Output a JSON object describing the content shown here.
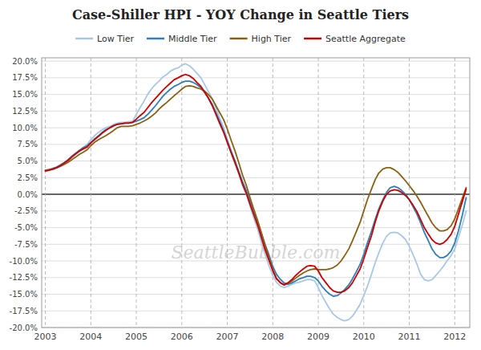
{
  "chart_data": {
    "type": "line",
    "title": "Case-Shiller HPI - YOY Change in Seattle Tiers",
    "annotations": [
      "SeattleBubble.com"
    ],
    "grid": true,
    "legend": "top",
    "xlim": [
      2002.92,
      2012.33
    ],
    "xticks": [
      2003,
      2004,
      2005,
      2006,
      2007,
      2008,
      2009,
      2010,
      2011,
      2012
    ],
    "ylim": [
      -0.2,
      0.205
    ],
    "yticks": [
      {
        "value": -0.2,
        "label": "-20.0%"
      },
      {
        "value": -0.175,
        "label": "-17.5%"
      },
      {
        "value": -0.15,
        "label": "-15.0%"
      },
      {
        "value": -0.125,
        "label": "-12.5%"
      },
      {
        "value": -0.1,
        "label": "-10.0%"
      },
      {
        "value": -0.075,
        "label": "-7.5%"
      },
      {
        "value": -0.05,
        "label": "-5.0%"
      },
      {
        "value": -0.025,
        "label": "-2.5%"
      },
      {
        "value": 0.0,
        "label": "0.0%"
      },
      {
        "value": 0.025,
        "label": "2.5%"
      },
      {
        "value": 0.05,
        "label": "5.0%"
      },
      {
        "value": 0.075,
        "label": "7.5%"
      },
      {
        "value": 0.1,
        "label": "10.0%"
      },
      {
        "value": 0.125,
        "label": "12.5%"
      },
      {
        "value": 0.15,
        "label": "15.0%"
      },
      {
        "value": 0.175,
        "label": "17.5%"
      },
      {
        "value": 0.2,
        "label": "20.0%"
      }
    ],
    "x": [
      2003.0,
      2003.08,
      2003.17,
      2003.25,
      2003.33,
      2003.42,
      2003.5,
      2003.58,
      2003.67,
      2003.75,
      2003.83,
      2003.92,
      2004.0,
      2004.08,
      2004.17,
      2004.25,
      2004.33,
      2004.42,
      2004.5,
      2004.58,
      2004.67,
      2004.75,
      2004.83,
      2004.92,
      2005.0,
      2005.08,
      2005.17,
      2005.25,
      2005.33,
      2005.42,
      2005.5,
      2005.58,
      2005.67,
      2005.75,
      2005.83,
      2005.92,
      2006.0,
      2006.08,
      2006.17,
      2006.25,
      2006.33,
      2006.42,
      2006.5,
      2006.58,
      2006.67,
      2006.75,
      2006.83,
      2006.92,
      2007.0,
      2007.08,
      2007.17,
      2007.25,
      2007.33,
      2007.42,
      2007.5,
      2007.58,
      2007.67,
      2007.75,
      2007.83,
      2007.92,
      2008.0,
      2008.08,
      2008.17,
      2008.25,
      2008.33,
      2008.42,
      2008.5,
      2008.58,
      2008.67,
      2008.75,
      2008.83,
      2008.92,
      2009.0,
      2009.08,
      2009.17,
      2009.25,
      2009.33,
      2009.42,
      2009.5,
      2009.58,
      2009.67,
      2009.75,
      2009.83,
      2009.92,
      2010.0,
      2010.08,
      2010.17,
      2010.25,
      2010.33,
      2010.42,
      2010.5,
      2010.58,
      2010.67,
      2010.75,
      2010.83,
      2010.92,
      2011.0,
      2011.08,
      2011.17,
      2011.25,
      2011.33,
      2011.42,
      2011.5,
      2011.58,
      2011.67,
      2011.75,
      2011.83,
      2011.92,
      2012.0,
      2012.08,
      2012.17,
      2012.25
    ],
    "series": [
      {
        "name": "Low Tier",
        "color": "#a8c8e8",
        "values": [
          0.035,
          0.036,
          0.038,
          0.04,
          0.043,
          0.046,
          0.05,
          0.055,
          0.06,
          0.065,
          0.07,
          0.075,
          0.082,
          0.088,
          0.093,
          0.097,
          0.1,
          0.102,
          0.105,
          0.107,
          0.108,
          0.108,
          0.109,
          0.11,
          0.12,
          0.13,
          0.14,
          0.15,
          0.158,
          0.165,
          0.17,
          0.176,
          0.18,
          0.185,
          0.188,
          0.19,
          0.194,
          0.196,
          0.193,
          0.188,
          0.182,
          0.175,
          0.165,
          0.155,
          0.143,
          0.13,
          0.115,
          0.1,
          0.083,
          0.067,
          0.05,
          0.033,
          0.015,
          0.0,
          -0.018,
          -0.035,
          -0.053,
          -0.072,
          -0.09,
          -0.108,
          -0.122,
          -0.132,
          -0.138,
          -0.14,
          -0.138,
          -0.135,
          -0.133,
          -0.132,
          -0.13,
          -0.128,
          -0.128,
          -0.13,
          -0.14,
          -0.152,
          -0.163,
          -0.172,
          -0.18,
          -0.185,
          -0.188,
          -0.19,
          -0.188,
          -0.183,
          -0.175,
          -0.165,
          -0.152,
          -0.138,
          -0.12,
          -0.103,
          -0.088,
          -0.073,
          -0.063,
          -0.058,
          -0.057,
          -0.058,
          -0.062,
          -0.068,
          -0.078,
          -0.09,
          -0.105,
          -0.12,
          -0.128,
          -0.13,
          -0.128,
          -0.122,
          -0.115,
          -0.108,
          -0.1,
          -0.092,
          -0.082,
          -0.065,
          -0.045,
          -0.025
        ]
      },
      {
        "name": "Middle Tier",
        "color": "#2e7eb8",
        "values": [
          0.036,
          0.037,
          0.039,
          0.041,
          0.044,
          0.048,
          0.052,
          0.057,
          0.062,
          0.066,
          0.07,
          0.073,
          0.078,
          0.083,
          0.088,
          0.093,
          0.097,
          0.1,
          0.103,
          0.105,
          0.106,
          0.107,
          0.107,
          0.108,
          0.11,
          0.112,
          0.115,
          0.12,
          0.126,
          0.133,
          0.14,
          0.147,
          0.153,
          0.158,
          0.162,
          0.165,
          0.168,
          0.17,
          0.17,
          0.168,
          0.165,
          0.16,
          0.153,
          0.145,
          0.135,
          0.123,
          0.11,
          0.095,
          0.08,
          0.065,
          0.05,
          0.035,
          0.02,
          0.005,
          -0.01,
          -0.025,
          -0.042,
          -0.058,
          -0.075,
          -0.092,
          -0.108,
          -0.12,
          -0.128,
          -0.133,
          -0.135,
          -0.133,
          -0.13,
          -0.127,
          -0.125,
          -0.123,
          -0.123,
          -0.125,
          -0.13,
          -0.138,
          -0.145,
          -0.15,
          -0.153,
          -0.152,
          -0.148,
          -0.143,
          -0.136,
          -0.127,
          -0.117,
          -0.105,
          -0.09,
          -0.073,
          -0.055,
          -0.038,
          -0.022,
          -0.008,
          0.003,
          0.01,
          0.012,
          0.01,
          0.006,
          0.0,
          -0.008,
          -0.018,
          -0.03,
          -0.043,
          -0.057,
          -0.07,
          -0.082,
          -0.09,
          -0.095,
          -0.095,
          -0.092,
          -0.085,
          -0.073,
          -0.055,
          -0.03,
          -0.005
        ]
      },
      {
        "name": "High Tier",
        "color": "#8B6010",
        "values": [
          0.036,
          0.037,
          0.038,
          0.04,
          0.042,
          0.045,
          0.048,
          0.052,
          0.056,
          0.06,
          0.063,
          0.067,
          0.073,
          0.078,
          0.082,
          0.085,
          0.088,
          0.092,
          0.096,
          0.1,
          0.102,
          0.102,
          0.102,
          0.103,
          0.105,
          0.107,
          0.11,
          0.113,
          0.117,
          0.122,
          0.128,
          0.133,
          0.138,
          0.143,
          0.148,
          0.153,
          0.158,
          0.162,
          0.163,
          0.162,
          0.16,
          0.158,
          0.155,
          0.15,
          0.143,
          0.133,
          0.123,
          0.112,
          0.098,
          0.082,
          0.065,
          0.048,
          0.03,
          0.013,
          -0.005,
          -0.022,
          -0.04,
          -0.058,
          -0.077,
          -0.096,
          -0.113,
          -0.126,
          -0.133,
          -0.136,
          -0.134,
          -0.13,
          -0.126,
          -0.122,
          -0.118,
          -0.115,
          -0.113,
          -0.112,
          -0.113,
          -0.113,
          -0.113,
          -0.112,
          -0.11,
          -0.106,
          -0.1,
          -0.092,
          -0.082,
          -0.07,
          -0.057,
          -0.042,
          -0.025,
          -0.008,
          0.008,
          0.022,
          0.032,
          0.038,
          0.04,
          0.04,
          0.037,
          0.033,
          0.027,
          0.02,
          0.013,
          0.006,
          -0.003,
          -0.012,
          -0.022,
          -0.033,
          -0.043,
          -0.05,
          -0.055,
          -0.055,
          -0.053,
          -0.047,
          -0.037,
          -0.022,
          -0.005,
          0.01
        ]
      },
      {
        "name": "Seattle Aggregate",
        "color": "#cc0000",
        "values": [
          0.035,
          0.036,
          0.038,
          0.04,
          0.043,
          0.047,
          0.051,
          0.056,
          0.061,
          0.065,
          0.068,
          0.071,
          0.077,
          0.082,
          0.087,
          0.092,
          0.096,
          0.1,
          0.103,
          0.105,
          0.106,
          0.107,
          0.107,
          0.108,
          0.113,
          0.118,
          0.123,
          0.13,
          0.137,
          0.144,
          0.15,
          0.156,
          0.162,
          0.167,
          0.172,
          0.175,
          0.178,
          0.18,
          0.178,
          0.174,
          0.168,
          0.162,
          0.154,
          0.145,
          0.133,
          0.12,
          0.107,
          0.093,
          0.078,
          0.063,
          0.047,
          0.032,
          0.016,
          0.001,
          -0.015,
          -0.03,
          -0.047,
          -0.065,
          -0.083,
          -0.1,
          -0.115,
          -0.127,
          -0.133,
          -0.136,
          -0.133,
          -0.128,
          -0.122,
          -0.117,
          -0.112,
          -0.108,
          -0.107,
          -0.108,
          -0.115,
          -0.125,
          -0.133,
          -0.14,
          -0.145,
          -0.147,
          -0.147,
          -0.145,
          -0.14,
          -0.133,
          -0.123,
          -0.112,
          -0.097,
          -0.08,
          -0.062,
          -0.042,
          -0.025,
          -0.01,
          -0.0,
          0.005,
          0.007,
          0.006,
          0.003,
          -0.002,
          -0.008,
          -0.016,
          -0.026,
          -0.038,
          -0.05,
          -0.06,
          -0.068,
          -0.073,
          -0.075,
          -0.073,
          -0.068,
          -0.06,
          -0.048,
          -0.03,
          -0.01,
          0.008
        ]
      }
    ]
  }
}
